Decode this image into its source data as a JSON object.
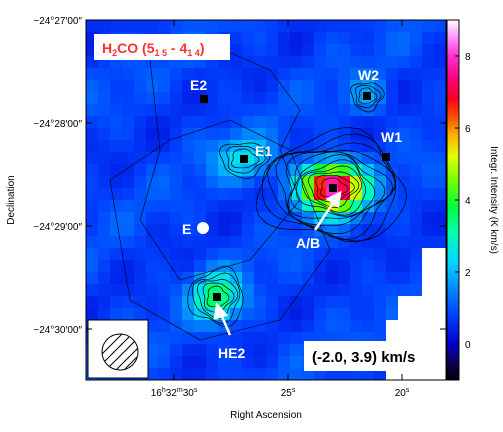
{
  "chart_data": {
    "type": "heatmap",
    "title": {
      "molecule": "H",
      "sub2": "2",
      "rest": "CO (5",
      "su1": "1",
      "mid1": " ",
      "su2": "5",
      "mid2": " - 4",
      "su3": "1",
      "mid3": " ",
      "su4": "4",
      "end": ")"
    },
    "title_color": "#ff3030",
    "xlabel": "Right Ascension",
    "ylabel": "Declination",
    "colorbar_label": "Integr. Intensity (K km/s)",
    "colorbar_range": [
      -1,
      9
    ],
    "colorbar_ticks": [
      "0",
      "2",
      "4",
      "6",
      "8"
    ],
    "y_ticks": [
      "−24°27′00″",
      "−24°28′00″",
      "−24°29′00″",
      "−24°30′00″"
    ],
    "x_ticks": [
      {
        "main": "16",
        "h": "h",
        "m_num": "32",
        "m": "m",
        "s_num": "30",
        "s": "s"
      },
      {
        "main": "25",
        "s": "s"
      },
      {
        "main": "20",
        "s": "s"
      }
    ],
    "velocity_range": "(-2.0, 3.9) km/s",
    "sources": [
      {
        "name": "E2",
        "marker": "square"
      },
      {
        "name": "W2",
        "marker": "square"
      },
      {
        "name": "E1",
        "marker": "square"
      },
      {
        "name": "W1",
        "marker": "square"
      },
      {
        "name": "E",
        "marker": "circle"
      },
      {
        "name": "A/B",
        "marker": "square"
      },
      {
        "name": "HE2",
        "marker": "square"
      }
    ],
    "peaks": [
      {
        "source": "A/B",
        "intensity": 8.5
      },
      {
        "source": "HE2",
        "intensity": 3.6
      },
      {
        "source": "E1",
        "intensity": 2.4
      },
      {
        "source": "W2",
        "intensity": 1.8
      }
    ],
    "background_level": 0.8,
    "grid": false
  }
}
